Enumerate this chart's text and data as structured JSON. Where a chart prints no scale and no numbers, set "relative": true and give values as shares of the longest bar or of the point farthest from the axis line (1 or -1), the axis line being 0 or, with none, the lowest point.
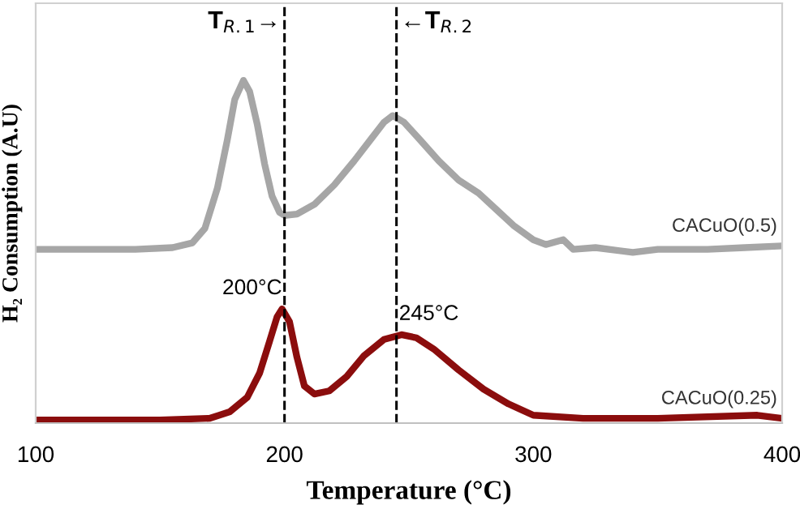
{
  "chart_data": {
    "type": "line",
    "relative": true,
    "xlabel": "Temperature (°C)",
    "ylabel": "H₂ Consumption (A.U)",
    "xlim": [
      100,
      400
    ],
    "xticks": [
      100,
      200,
      300,
      400
    ],
    "grid": false,
    "legend": false,
    "tick_labels": "x",
    "marker": "none",
    "line_style": "solid",
    "series": [
      {
        "name": "CACuO(0.5)",
        "color": "#a6a6a6",
        "x": [
          100,
          120,
          140,
          155,
          163,
          168,
          173,
          177,
          180,
          183.5,
          186,
          189,
          192,
          195,
          198,
          200,
          205,
          212,
          220,
          228,
          235,
          240,
          243.5,
          248,
          255,
          262,
          270,
          278,
          285,
          292,
          300,
          305,
          312,
          316,
          325,
          340,
          350,
          370,
          385,
          400
        ],
        "values": [
          0.507,
          0.507,
          0.507,
          0.512,
          0.526,
          0.568,
          0.685,
          0.826,
          0.944,
          1,
          0.967,
          0.873,
          0.756,
          0.662,
          0.615,
          0.606,
          0.61,
          0.638,
          0.695,
          0.765,
          0.831,
          0.878,
          0.897,
          0.878,
          0.822,
          0.765,
          0.709,
          0.671,
          0.624,
          0.577,
          0.535,
          0.521,
          0.535,
          0.507,
          0.512,
          0.498,
          0.507,
          0.507,
          0.512,
          0.517
        ]
      },
      {
        "name": "CACuO(0.25)",
        "color": "#8b0d0d",
        "x": [
          100,
          150,
          170,
          178,
          185,
          190,
          194,
          197,
          199,
          202,
          205,
          208,
          212,
          218,
          225,
          232,
          240,
          247,
          253,
          260,
          270,
          280,
          290,
          300,
          320,
          350,
          390,
          400
        ],
        "values": [
          0.009,
          0.009,
          0.014,
          0.033,
          0.075,
          0.146,
          0.239,
          0.31,
          0.333,
          0.296,
          0.192,
          0.108,
          0.085,
          0.094,
          0.136,
          0.197,
          0.244,
          0.258,
          0.249,
          0.216,
          0.155,
          0.099,
          0.056,
          0.023,
          0.014,
          0.014,
          0.023,
          0.014
        ]
      }
    ],
    "ref_lines": [
      {
        "axis": "x",
        "value": 200,
        "label": "T$_{R.1}$→",
        "color": "#000000",
        "line_style": "dashed"
      },
      {
        "axis": "x",
        "value": 245,
        "label": "←T$_{R.2}$",
        "color": "#000000",
        "line_style": "dashed"
      }
    ],
    "annotations": [
      {
        "text": "200°C",
        "x": 200,
        "y": 0.333
      },
      {
        "text": "245°C",
        "x": 245,
        "y": 0.258
      }
    ]
  }
}
